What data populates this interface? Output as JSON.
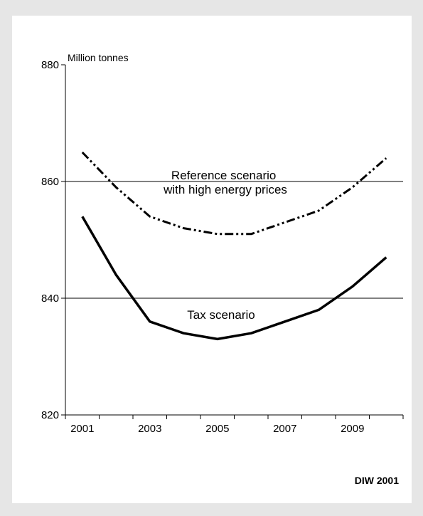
{
  "credit": "DIW 2001",
  "chart_data": {
    "type": "line",
    "ylabel": "Million tonnes",
    "xlabel": "",
    "ylim": [
      820,
      880
    ],
    "yticks": [
      820,
      840,
      860,
      880
    ],
    "gridlines_y": [
      840,
      860
    ],
    "x_tick_labels": [
      "2001",
      "2003",
      "2005",
      "2007",
      "2009"
    ],
    "xlim": [
      2000.5,
      2010.5
    ],
    "series": [
      {
        "name_lines": [
          "Reference scenario",
          "with high energy prices"
        ],
        "style": "dash-dot-dot",
        "x": [
          2001,
          2002,
          2003,
          2004,
          2005,
          2006,
          2007,
          2008,
          2009,
          2010
        ],
        "values": [
          865,
          859,
          854,
          852,
          851,
          851,
          853,
          855,
          859,
          864
        ]
      },
      {
        "name_lines": [
          "Tax scenario"
        ],
        "style": "solid",
        "x": [
          2001,
          2002,
          2003,
          2004,
          2005,
          2006,
          2007,
          2008,
          2009,
          2010
        ],
        "values": [
          854,
          844,
          836,
          834,
          833,
          834,
          836,
          838,
          842,
          847
        ]
      }
    ],
    "line_color": "#000000"
  }
}
